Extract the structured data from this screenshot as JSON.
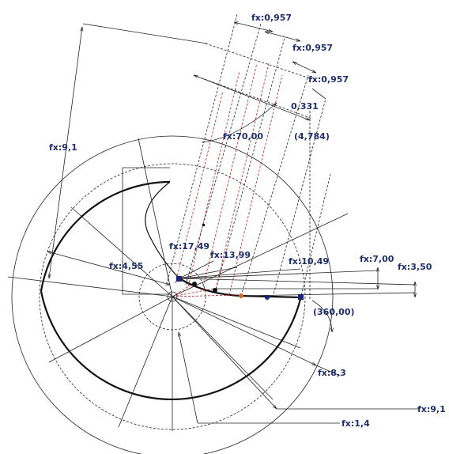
{
  "dimensions": {
    "fx_0957_a": "fx:0,957",
    "fx_0957_b": "fx:0,957",
    "fx_0957_c": "fx:0,957",
    "ref_0331": "0,331",
    "fx_70": "fx:70,00",
    "ref_4784": "(4,784)",
    "fx_91_left": "fx:9,1",
    "fx_455": "fx:4,55",
    "fx_1749": "fx:17,49",
    "fx_1399": "fx:13,99",
    "fx_1049": "fx:10,49",
    "fx_700": "fx:7,00",
    "fx_350": "fx:3,50",
    "ref_360": "(360,00)",
    "fx_83": "fx:8,3",
    "fx_91_right": "fx:9,1",
    "fx_14": "fx:1,4"
  },
  "colors": {
    "dimension_text": "#1f2f6b",
    "construction_red": "#b22222",
    "geometry": "#111111",
    "point_marker": "#1a237e",
    "dot_orange": "#d2691e"
  }
}
